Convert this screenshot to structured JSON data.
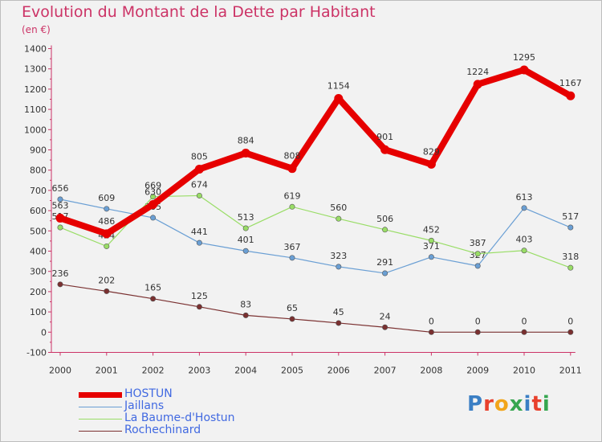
{
  "title": "Evolution du Montant de la Dette par Habitant",
  "subtitle": "(en €)",
  "logo": {
    "letters": [
      "P",
      "r",
      "o",
      "x",
      "i",
      "t",
      "i"
    ],
    "colors": [
      "#3b7fc4",
      "#e8402c",
      "#f2a51a",
      "#36a64f",
      "#3b7fc4",
      "#e8402c",
      "#36a64f"
    ]
  },
  "chart_data": {
    "type": "line",
    "title": "Evolution du Montant de la Dette par Habitant",
    "ylabel": "(en €)",
    "categories": [
      "2000",
      "2001",
      "2002",
      "2003",
      "2004",
      "2005",
      "2006",
      "2007",
      "2008",
      "2009",
      "2010",
      "2011"
    ],
    "ylim": [
      -100,
      1400
    ],
    "yticks": [
      -100,
      0,
      100,
      200,
      300,
      400,
      500,
      600,
      700,
      800,
      900,
      1000,
      1100,
      1200,
      1300,
      1400
    ],
    "grid": false,
    "legend_position": "bottom-left",
    "series": [
      {
        "name": "HOSTUN",
        "color": "#e60000",
        "values": [
          563,
          486,
          630,
          805,
          884,
          808,
          1154,
          901,
          829,
          1224,
          1295,
          1167
        ]
      },
      {
        "name": "Jaillans",
        "color": "#6a9fd4",
        "values": [
          656,
          609,
          565,
          441,
          401,
          367,
          323,
          291,
          371,
          327,
          613,
          517
        ]
      },
      {
        "name": "La Baume-d'Hostun",
        "color": "#99dd66",
        "values": [
          517,
          424,
          669,
          674,
          513,
          619,
          560,
          506,
          452,
          387,
          403,
          318
        ]
      },
      {
        "name": "Rochechinard",
        "color": "#7a3030",
        "values": [
          236,
          202,
          165,
          125,
          83,
          65,
          45,
          24,
          0,
          0,
          0,
          0
        ]
      }
    ]
  }
}
